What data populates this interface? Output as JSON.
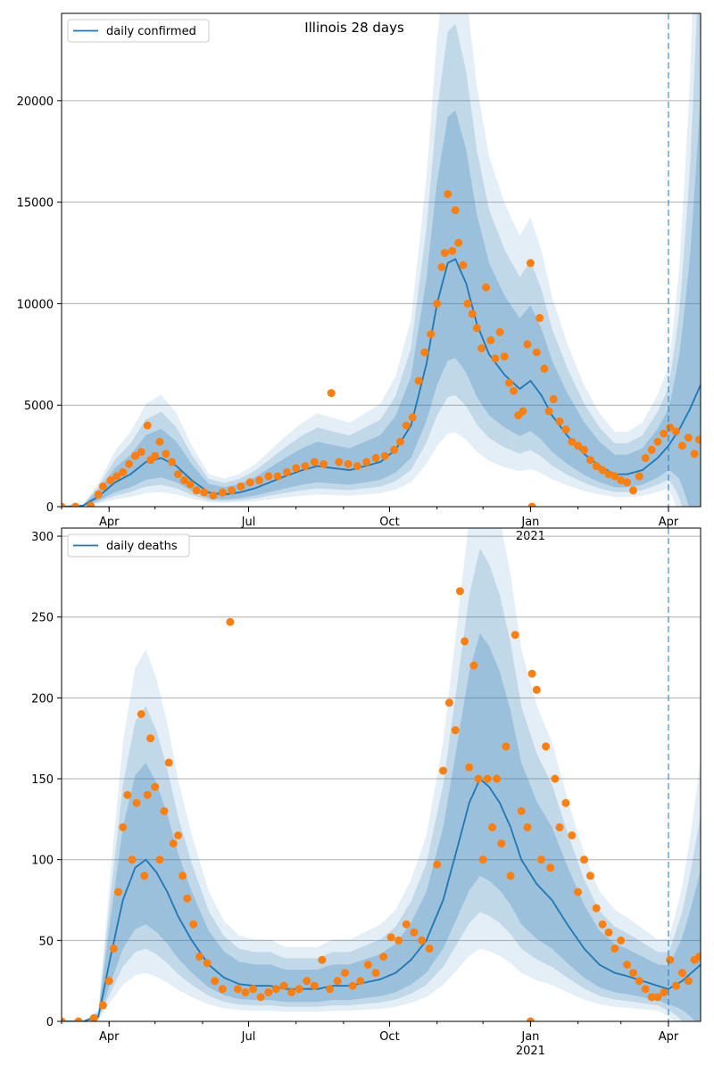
{
  "title": "Illinois 28 days",
  "chart_data": [
    {
      "type": "line",
      "legend_label": "daily confirmed",
      "legend_position": "top-left",
      "grid": "horizontal",
      "ylim": [
        0,
        24300
      ],
      "yticks": [
        0,
        5000,
        10000,
        15000,
        20000
      ],
      "xlim": [
        "2020-03-01",
        "2021-04-22"
      ],
      "x_tick_labels": [
        "Apr",
        "Jul",
        "Oct",
        "Jan",
        "Apr"
      ],
      "x_tick_dates": [
        "2020-04-01",
        "2020-07-01",
        "2020-10-01",
        "2021-01-01",
        "2021-04-01"
      ],
      "year_label": "2021",
      "forecast_start": "2021-04-01",
      "x": [
        "2020-03-01",
        "2020-03-15",
        "2020-03-25",
        "2020-04-05",
        "2020-04-15",
        "2020-04-25",
        "2020-05-05",
        "2020-05-15",
        "2020-05-25",
        "2020-06-05",
        "2020-06-15",
        "2020-06-25",
        "2020-07-05",
        "2020-07-15",
        "2020-07-25",
        "2020-08-05",
        "2020-08-15",
        "2020-08-25",
        "2020-09-05",
        "2020-09-15",
        "2020-09-25",
        "2020-10-05",
        "2020-10-15",
        "2020-10-25",
        "2020-11-01",
        "2020-11-08",
        "2020-11-13",
        "2020-11-20",
        "2020-11-27",
        "2020-12-05",
        "2020-12-15",
        "2020-12-25",
        "2021-01-01",
        "2021-01-08",
        "2021-01-15",
        "2021-01-25",
        "2021-02-05",
        "2021-02-15",
        "2021-02-25",
        "2021-03-05",
        "2021-03-15",
        "2021-03-25",
        "2021-04-01",
        "2021-04-08",
        "2021-04-15",
        "2021-04-22"
      ],
      "values": [
        0,
        50,
        500,
        1200,
        1600,
        2200,
        2400,
        2000,
        1300,
        700,
        600,
        700,
        900,
        1200,
        1500,
        1800,
        2000,
        1900,
        1800,
        2000,
        2200,
        2800,
        4000,
        7000,
        10000,
        12000,
        12200,
        11000,
        9000,
        7500,
        6500,
        5800,
        6200,
        5500,
        4500,
        3500,
        2600,
        2000,
        1600,
        1600,
        1800,
        2400,
        3000,
        3800,
        4800,
        6000
      ],
      "band_scale": [
        1.0,
        1.0,
        1.0,
        1.0,
        1.0,
        1.0,
        1.0,
        1.0,
        1.0,
        1.0,
        1.0,
        1.0,
        1.0,
        1.0,
        1.0,
        1.0,
        1.0,
        1.0,
        1.0,
        1.0,
        1.0,
        1.0,
        1.0,
        1.0,
        1.0,
        1.0,
        1.0,
        1.0,
        1.0,
        1.0,
        1.0,
        1.0,
        1.0,
        1.0,
        1.0,
        1.0,
        1.0,
        1.0,
        1.0,
        1.0,
        1.0,
        1.0,
        1.0,
        1.6,
        2.6,
        4.0
      ],
      "observed": {
        "x": [
          "2020-03-01",
          "2020-03-10",
          "2020-03-20",
          "2020-03-25",
          "2020-03-28",
          "2020-04-02",
          "2020-04-06",
          "2020-04-10",
          "2020-04-14",
          "2020-04-18",
          "2020-04-22",
          "2020-04-26",
          "2020-04-28",
          "2020-05-01",
          "2020-05-04",
          "2020-05-08",
          "2020-05-12",
          "2020-05-16",
          "2020-05-20",
          "2020-05-24",
          "2020-05-28",
          "2020-06-02",
          "2020-06-08",
          "2020-06-14",
          "2020-06-20",
          "2020-06-26",
          "2020-07-02",
          "2020-07-08",
          "2020-07-14",
          "2020-07-20",
          "2020-07-26",
          "2020-08-01",
          "2020-08-07",
          "2020-08-13",
          "2020-08-19",
          "2020-08-24",
          "2020-08-29",
          "2020-09-04",
          "2020-09-10",
          "2020-09-16",
          "2020-09-22",
          "2020-09-28",
          "2020-10-04",
          "2020-10-08",
          "2020-10-12",
          "2020-10-16",
          "2020-10-20",
          "2020-10-24",
          "2020-10-28",
          "2020-11-01",
          "2020-11-04",
          "2020-11-06",
          "2020-11-08",
          "2020-11-11",
          "2020-11-13",
          "2020-11-15",
          "2020-11-18",
          "2020-11-21",
          "2020-11-24",
          "2020-11-27",
          "2020-11-30",
          "2020-12-03",
          "2020-12-06",
          "2020-12-09",
          "2020-12-12",
          "2020-12-15",
          "2020-12-18",
          "2020-12-21",
          "2020-12-24",
          "2020-12-27",
          "2020-12-30",
          "2021-01-01",
          "2021-01-02",
          "2021-01-05",
          "2021-01-07",
          "2021-01-10",
          "2021-01-13",
          "2021-01-16",
          "2021-01-20",
          "2021-01-24",
          "2021-01-28",
          "2021-02-01",
          "2021-02-05",
          "2021-02-09",
          "2021-02-13",
          "2021-02-17",
          "2021-02-21",
          "2021-02-25",
          "2021-03-01",
          "2021-03-05",
          "2021-03-09",
          "2021-03-13",
          "2021-03-17",
          "2021-03-21",
          "2021-03-25",
          "2021-03-29",
          "2021-04-02",
          "2021-04-06",
          "2021-04-10",
          "2021-04-14",
          "2021-04-18",
          "2021-04-21"
        ],
        "values": [
          0,
          0,
          50,
          600,
          1000,
          1300,
          1500,
          1700,
          2100,
          2500,
          2700,
          4000,
          2300,
          2500,
          3200,
          2600,
          2200,
          1600,
          1300,
          1100,
          800,
          700,
          550,
          700,
          800,
          1000,
          1200,
          1300,
          1500,
          1500,
          1700,
          1900,
          2000,
          2200,
          2100,
          5600,
          2200,
          2100,
          2000,
          2200,
          2400,
          2500,
          2800,
          3200,
          4000,
          4400,
          6200,
          7600,
          8500,
          10000,
          11800,
          12500,
          15400,
          12600,
          14600,
          13000,
          11900,
          10000,
          9500,
          8800,
          7800,
          10800,
          8200,
          7300,
          8600,
          7400,
          6100,
          5700,
          4500,
          4700,
          8000,
          12000,
          0,
          7600,
          9300,
          6800,
          4700,
          5300,
          4200,
          3800,
          3200,
          3000,
          2800,
          2300,
          2000,
          1800,
          1600,
          1500,
          1300,
          1200,
          800,
          1500,
          2400,
          2800,
          3200,
          3600,
          3900,
          3700,
          3000,
          3400,
          2600,
          3300
        ]
      }
    },
    {
      "type": "line",
      "legend_label": "daily deaths",
      "legend_position": "top-left",
      "grid": "horizontal",
      "ylim": [
        0,
        305
      ],
      "yticks": [
        0,
        50,
        100,
        150,
        200,
        250,
        300
      ],
      "xlim": [
        "2020-03-01",
        "2021-04-22"
      ],
      "x_tick_labels": [
        "Apr",
        "Jul",
        "Oct",
        "Jan",
        "Apr"
      ],
      "x_tick_dates": [
        "2020-04-01",
        "2020-07-01",
        "2020-10-01",
        "2021-01-01",
        "2021-04-01"
      ],
      "year_label": "2021",
      "forecast_start": "2021-04-01",
      "x": [
        "2020-03-01",
        "2020-03-15",
        "2020-03-25",
        "2020-04-02",
        "2020-04-10",
        "2020-04-18",
        "2020-04-25",
        "2020-05-02",
        "2020-05-09",
        "2020-05-16",
        "2020-05-25",
        "2020-06-05",
        "2020-06-15",
        "2020-06-25",
        "2020-07-05",
        "2020-07-15",
        "2020-07-25",
        "2020-08-05",
        "2020-08-15",
        "2020-08-25",
        "2020-09-05",
        "2020-09-15",
        "2020-09-25",
        "2020-10-05",
        "2020-10-15",
        "2020-10-25",
        "2020-11-05",
        "2020-11-15",
        "2020-11-22",
        "2020-11-29",
        "2020-12-05",
        "2020-12-12",
        "2020-12-19",
        "2020-12-26",
        "2021-01-05",
        "2021-01-15",
        "2021-01-25",
        "2021-02-05",
        "2021-02-15",
        "2021-02-25",
        "2021-03-05",
        "2021-03-15",
        "2021-03-25",
        "2021-04-01",
        "2021-04-10",
        "2021-04-22"
      ],
      "values": [
        0,
        0,
        3,
        40,
        75,
        95,
        100,
        92,
        80,
        65,
        50,
        35,
        27,
        23,
        22,
        22,
        20,
        20,
        20,
        22,
        22,
        24,
        26,
        30,
        38,
        50,
        75,
        110,
        135,
        150,
        145,
        135,
        120,
        100,
        85,
        75,
        60,
        45,
        35,
        30,
        28,
        25,
        22,
        20,
        25,
        35
      ],
      "band_scale": [
        1.0,
        1.0,
        1.0,
        1.0,
        1.0,
        1.0,
        1.0,
        1.0,
        1.0,
        1.0,
        1.0,
        1.0,
        1.0,
        1.0,
        1.0,
        1.0,
        1.0,
        1.0,
        1.0,
        1.0,
        1.0,
        1.0,
        1.0,
        1.0,
        1.0,
        1.0,
        1.0,
        1.0,
        1.0,
        1.0,
        1.0,
        1.0,
        1.0,
        1.0,
        1.0,
        1.0,
        1.0,
        1.0,
        1.0,
        1.0,
        1.0,
        1.0,
        1.0,
        1.2,
        1.8,
        2.8
      ],
      "observed": {
        "x": [
          "2020-03-01",
          "2020-03-12",
          "2020-03-22",
          "2020-03-28",
          "2020-04-01",
          "2020-04-04",
          "2020-04-07",
          "2020-04-10",
          "2020-04-13",
          "2020-04-16",
          "2020-04-19",
          "2020-04-22",
          "2020-04-24",
          "2020-04-26",
          "2020-04-28",
          "2020-05-01",
          "2020-05-04",
          "2020-05-07",
          "2020-05-10",
          "2020-05-13",
          "2020-05-16",
          "2020-05-19",
          "2020-05-22",
          "2020-05-26",
          "2020-05-30",
          "2020-06-04",
          "2020-06-09",
          "2020-06-14",
          "2020-06-19",
          "2020-06-24",
          "2020-06-29",
          "2020-07-04",
          "2020-07-09",
          "2020-07-14",
          "2020-07-19",
          "2020-07-24",
          "2020-07-29",
          "2020-08-03",
          "2020-08-08",
          "2020-08-13",
          "2020-08-18",
          "2020-08-23",
          "2020-08-28",
          "2020-09-02",
          "2020-09-07",
          "2020-09-12",
          "2020-09-17",
          "2020-09-22",
          "2020-09-27",
          "2020-10-02",
          "2020-10-07",
          "2020-10-12",
          "2020-10-17",
          "2020-10-22",
          "2020-10-27",
          "2020-11-01",
          "2020-11-05",
          "2020-11-09",
          "2020-11-13",
          "2020-11-16",
          "2020-11-19",
          "2020-11-22",
          "2020-11-25",
          "2020-11-28",
          "2020-12-01",
          "2020-12-04",
          "2020-12-07",
          "2020-12-10",
          "2020-12-13",
          "2020-12-16",
          "2020-12-19",
          "2020-12-22",
          "2020-12-26",
          "2020-12-30",
          "2021-01-01",
          "2021-01-02",
          "2021-01-05",
          "2021-01-08",
          "2021-01-11",
          "2021-01-14",
          "2021-01-17",
          "2021-01-20",
          "2021-01-24",
          "2021-01-28",
          "2021-02-01",
          "2021-02-05",
          "2021-02-09",
          "2021-02-13",
          "2021-02-17",
          "2021-02-21",
          "2021-02-25",
          "2021-03-01",
          "2021-03-05",
          "2021-03-09",
          "2021-03-13",
          "2021-03-17",
          "2021-03-21",
          "2021-03-25",
          "2021-03-29",
          "2021-04-02",
          "2021-04-06",
          "2021-04-10",
          "2021-04-14",
          "2021-04-18",
          "2021-04-21"
        ],
        "values": [
          0,
          0,
          2,
          10,
          25,
          45,
          80,
          120,
          140,
          100,
          135,
          190,
          90,
          140,
          175,
          145,
          100,
          130,
          160,
          110,
          115,
          90,
          76,
          60,
          40,
          36,
          25,
          20,
          247,
          20,
          18,
          20,
          15,
          18,
          20,
          22,
          18,
          20,
          25,
          22,
          38,
          20,
          25,
          30,
          22,
          25,
          35,
          30,
          40,
          52,
          50,
          60,
          55,
          50,
          45,
          97,
          155,
          197,
          180,
          266,
          235,
          157,
          220,
          150,
          100,
          150,
          120,
          150,
          110,
          170,
          90,
          239,
          130,
          120,
          0,
          215,
          205,
          100,
          170,
          95,
          150,
          120,
          135,
          115,
          80,
          100,
          90,
          70,
          60,
          55,
          45,
          50,
          35,
          30,
          25,
          20,
          15,
          15,
          18,
          38,
          22,
          30,
          25,
          38,
          40
        ]
      }
    }
  ]
}
